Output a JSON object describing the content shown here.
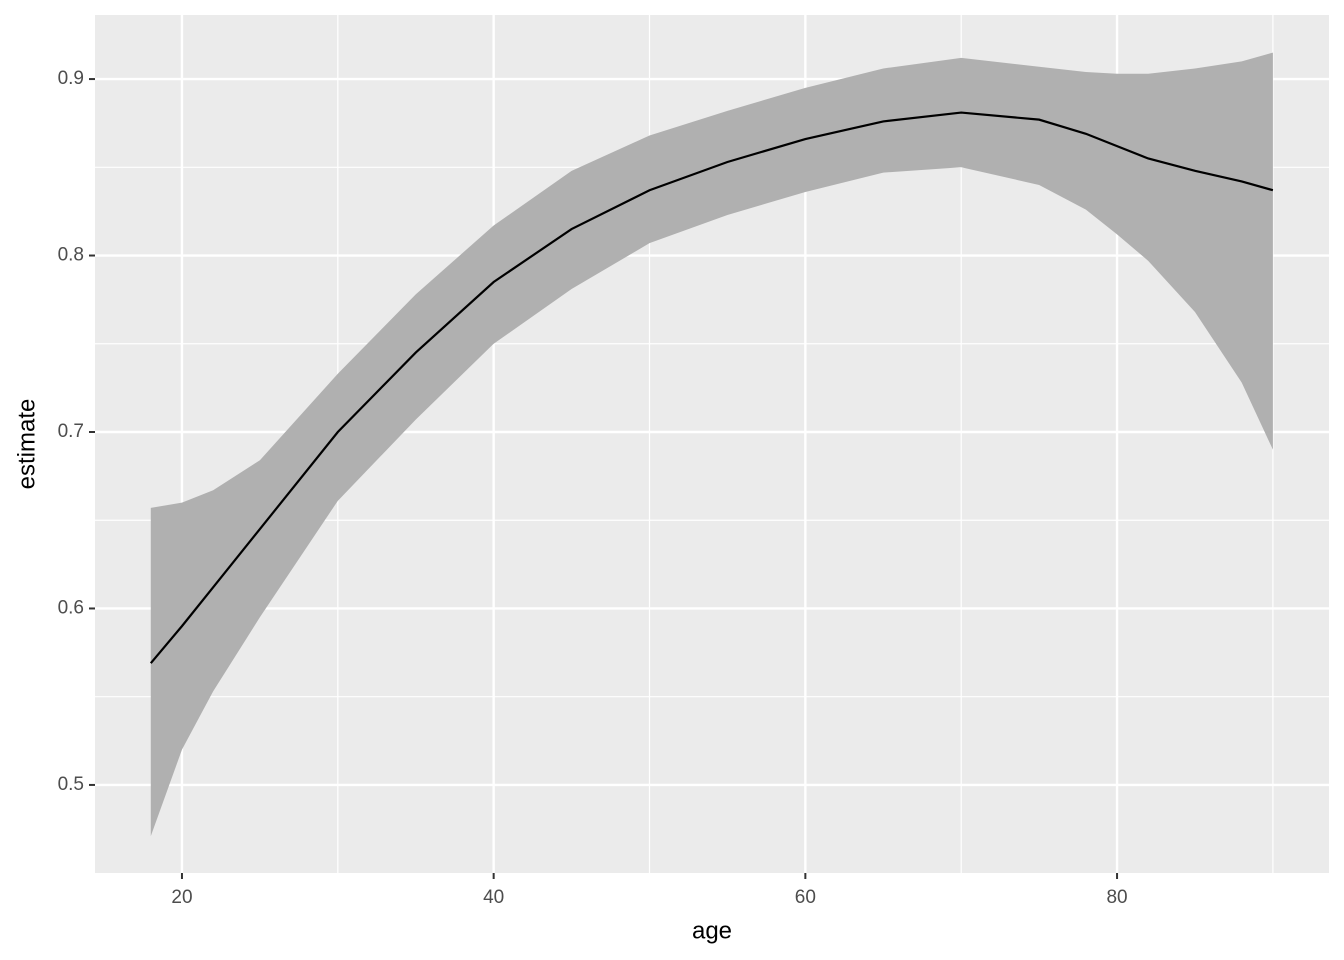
{
  "chart_data": {
    "type": "line",
    "xlabel": "age",
    "ylabel": "estimate",
    "x": [
      18,
      20,
      22,
      25,
      30,
      35,
      40,
      45,
      50,
      55,
      60,
      65,
      70,
      75,
      78,
      80,
      82,
      85,
      88,
      90
    ],
    "values": [
      0.569,
      0.59,
      0.612,
      0.645,
      0.7,
      0.745,
      0.785,
      0.815,
      0.837,
      0.853,
      0.866,
      0.876,
      0.881,
      0.877,
      0.869,
      0.862,
      0.855,
      0.848,
      0.842,
      0.837
    ],
    "lower": [
      0.471,
      0.52,
      0.553,
      0.595,
      0.661,
      0.707,
      0.75,
      0.781,
      0.807,
      0.823,
      0.836,
      0.847,
      0.85,
      0.84,
      0.826,
      0.812,
      0.797,
      0.768,
      0.728,
      0.69
    ],
    "upper": [
      0.657,
      0.66,
      0.667,
      0.684,
      0.733,
      0.778,
      0.817,
      0.848,
      0.868,
      0.882,
      0.895,
      0.906,
      0.912,
      0.907,
      0.904,
      0.903,
      0.903,
      0.906,
      0.91,
      0.915
    ],
    "color": "#000000",
    "ribbon_color": "#b0b0b0",
    "xlim": [
      14.42,
      93.6
    ],
    "ylim": [
      0.4501,
      0.9363
    ],
    "xticks": [
      20,
      40,
      60,
      80
    ],
    "yticks": [
      0.5,
      0.6,
      0.7,
      0.8,
      0.9
    ],
    "xminor": [
      30,
      50,
      70,
      90
    ],
    "yminor": [
      0.55,
      0.65,
      0.75,
      0.85
    ],
    "grid": true
  }
}
